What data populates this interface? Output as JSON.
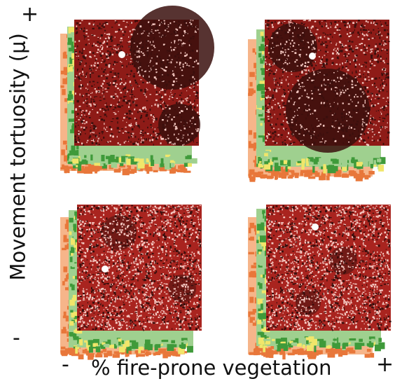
{
  "axes": {
    "y_label": "Movement tortuosity (μ)",
    "y_high": "+",
    "y_low": "-",
    "x_label": "% fire-prone vegetation",
    "x_low": "-",
    "x_high": "+"
  },
  "colors": {
    "map_dark": "#3a0f0d",
    "map_red": "#a6201c",
    "map_light": "#f4c9c2",
    "veg_orange": "#e8773a",
    "veg_peach": "#f6b58a",
    "veg_green_dark": "#3f9a3a",
    "veg_green_light": "#9fd08f",
    "veg_yellow": "#f1e66a"
  },
  "panels": [
    {
      "name": "low-vegetation-high-tortuosity",
      "highlights": 1,
      "shades": "dark"
    },
    {
      "name": "high-vegetation-high-tortuosity",
      "highlights": 1,
      "shades": "dark"
    },
    {
      "name": "low-vegetation-low-tortuosity",
      "highlights": 1,
      "shades": "light"
    },
    {
      "name": "high-vegetation-low-tortuosity",
      "highlights": 1,
      "shades": "light"
    }
  ]
}
